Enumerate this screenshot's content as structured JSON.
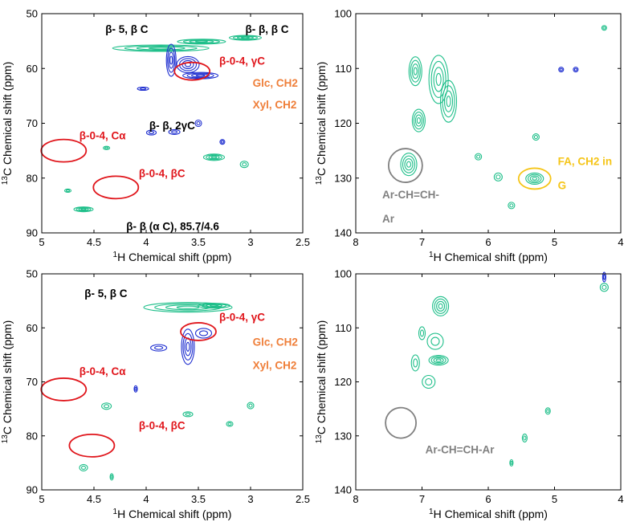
{
  "colors": {
    "contour_green": "#1fbf8a",
    "contour_blue": "#1f2fd0",
    "annotation_red": "#e0151b",
    "annotation_orange": "#ef7f3a",
    "annotation_black": "#000000",
    "annotation_gray": "#808080",
    "annotation_yellow": "#f5c518"
  },
  "chart_data": [
    {
      "type": "heatmap",
      "panel": "top-left",
      "xlabel": "1H Chemical shift (ppm)",
      "ylabel": "13C Chemical shift (ppm)",
      "xlim": [
        5,
        2.5
      ],
      "ylim": [
        50,
        90
      ],
      "x_ticks": [
        "5",
        "4.5",
        "4",
        "3.5",
        "3",
        "2.5"
      ],
      "y_ticks": [
        "50",
        "60",
        "70",
        "80",
        "90"
      ],
      "annotations": [
        {
          "text": "β- 5, β C",
          "x": 4.39,
          "y": 53.5,
          "color": "annotation_black"
        },
        {
          "text": "β- β, β C",
          "x": 3.05,
          "y": 53.5,
          "color": "annotation_black"
        },
        {
          "text": "β-0-4, γC",
          "x": 3.3,
          "y": 59.3,
          "color": "annotation_red"
        },
        {
          "text": "Glc, CH2",
          "x": 2.98,
          "y": 63.3,
          "color": "annotation_orange"
        },
        {
          "text": "Xyl, CH2",
          "x": 2.98,
          "y": 67.3,
          "color": "annotation_orange"
        },
        {
          "text": "β- β, 2γC",
          "x": 3.97,
          "y": 71.1,
          "color": "annotation_black"
        },
        {
          "text": "β-0-4, Cα",
          "x": 4.64,
          "y": 72.9,
          "color": "annotation_red"
        },
        {
          "text": "β-0-4, βC",
          "x": 4.07,
          "y": 79.8,
          "color": "annotation_red"
        },
        {
          "text": "β- β (α C), 85.7/4.6",
          "x": 4.19,
          "y": 89.5,
          "color": "annotation_black"
        }
      ],
      "circles": [
        {
          "label": "β-0-4, γC",
          "x": 3.56,
          "y": 60.5,
          "color": "annotation_red"
        },
        {
          "label": "β-0-4, Cα",
          "x": 4.79,
          "y": 75.0,
          "color": "annotation_red"
        },
        {
          "label": "β-0-4, βC",
          "x": 4.29,
          "y": 81.7,
          "color": "annotation_red"
        }
      ],
      "cross_peaks": [
        {
          "x": 3.86,
          "y": 56.3,
          "color": "contour_green"
        },
        {
          "x": 3.47,
          "y": 55.1,
          "color": "contour_green"
        },
        {
          "x": 3.05,
          "y": 54.4,
          "color": "contour_green"
        },
        {
          "x": 3.76,
          "y": 58.5,
          "color": "contour_blue"
        },
        {
          "x": 3.48,
          "y": 61.3,
          "color": "contour_blue"
        },
        {
          "x": 3.6,
          "y": 59.3,
          "color": "contour_blue"
        },
        {
          "x": 4.03,
          "y": 63.7,
          "color": "contour_blue"
        },
        {
          "x": 3.95,
          "y": 71.7,
          "color": "contour_blue"
        },
        {
          "x": 3.73,
          "y": 71.6,
          "color": "contour_blue"
        },
        {
          "x": 3.27,
          "y": 73.4,
          "color": "contour_blue"
        },
        {
          "x": 3.5,
          "y": 70.0,
          "color": "contour_blue"
        },
        {
          "x": 4.38,
          "y": 74.5,
          "color": "contour_green"
        },
        {
          "x": 3.35,
          "y": 76.2,
          "color": "contour_green"
        },
        {
          "x": 3.06,
          "y": 77.5,
          "color": "contour_green"
        },
        {
          "x": 4.75,
          "y": 82.3,
          "color": "contour_green"
        },
        {
          "x": 4.6,
          "y": 85.7,
          "color": "contour_green"
        }
      ]
    },
    {
      "type": "heatmap",
      "panel": "top-right",
      "xlabel": "1H Chemical shift (ppm)",
      "ylabel": "13C Chemical shift (ppm)",
      "xlim": [
        8,
        4
      ],
      "ylim": [
        100,
        140
      ],
      "x_ticks": [
        "8",
        "7",
        "6",
        "5",
        "4"
      ],
      "y_ticks": [
        "100",
        "110",
        "120",
        "130",
        "140"
      ],
      "annotations": [
        {
          "text": "FA, CH2 in",
          "x": 4.95,
          "y": 127.6,
          "color": "annotation_yellow"
        },
        {
          "text": "G",
          "x": 4.95,
          "y": 132.0,
          "color": "annotation_yellow"
        },
        {
          "text": "Ar-CH=CH-",
          "x": 7.6,
          "y": 133.7,
          "color": "annotation_gray"
        },
        {
          "text": "Ar",
          "x": 7.6,
          "y": 138.1,
          "color": "annotation_gray"
        }
      ],
      "circles": [
        {
          "label": "Ar-CH=CH-Ar",
          "x": 7.25,
          "y": 127.7,
          "color": "annotation_gray"
        },
        {
          "label": "FA, CH2 in G",
          "x": 5.3,
          "y": 130.1,
          "color": "annotation_yellow"
        }
      ],
      "cross_peaks": [
        {
          "x": 6.75,
          "y": 112.0,
          "color": "contour_green"
        },
        {
          "x": 7.1,
          "y": 110.5,
          "color": "contour_green"
        },
        {
          "x": 6.6,
          "y": 116.0,
          "color": "contour_green"
        },
        {
          "x": 7.05,
          "y": 119.5,
          "color": "contour_green"
        },
        {
          "x": 7.2,
          "y": 127.5,
          "color": "contour_green"
        },
        {
          "x": 5.3,
          "y": 130.1,
          "color": "contour_green"
        },
        {
          "x": 5.85,
          "y": 129.8,
          "color": "contour_green"
        },
        {
          "x": 6.15,
          "y": 126.1,
          "color": "contour_green"
        },
        {
          "x": 5.65,
          "y": 135.0,
          "color": "contour_green"
        },
        {
          "x": 4.25,
          "y": 102.6,
          "color": "contour_green"
        },
        {
          "x": 5.28,
          "y": 122.5,
          "color": "contour_green"
        },
        {
          "x": 4.9,
          "y": 110.2,
          "color": "contour_blue"
        },
        {
          "x": 4.68,
          "y": 110.2,
          "color": "contour_blue"
        }
      ]
    },
    {
      "type": "heatmap",
      "panel": "bottom-left",
      "xlabel": "1H Chemical shift (ppm)",
      "ylabel": "13C Chemical shift (ppm)",
      "xlim": [
        5,
        2.5
      ],
      "ylim": [
        50,
        90
      ],
      "x_ticks": [
        "5",
        "4.5",
        "4",
        "3.5",
        "3",
        "2.5"
      ],
      "y_ticks": [
        "50",
        "60",
        "70",
        "80",
        "90"
      ],
      "annotations": [
        {
          "text": "β- 5, β C",
          "x": 4.59,
          "y": 54.3,
          "color": "annotation_black"
        },
        {
          "text": "β-0-4, γC",
          "x": 3.3,
          "y": 58.7,
          "color": "annotation_red"
        },
        {
          "text": "Glc, CH2",
          "x": 2.98,
          "y": 63.3,
          "color": "annotation_orange"
        },
        {
          "text": "Xyl, CH2",
          "x": 2.98,
          "y": 67.6,
          "color": "annotation_orange"
        },
        {
          "text": "β-0-4, Cα",
          "x": 4.64,
          "y": 68.7,
          "color": "annotation_red"
        },
        {
          "text": "β-0-4, βC",
          "x": 4.07,
          "y": 78.8,
          "color": "annotation_red"
        }
      ],
      "circles": [
        {
          "label": "β-0-4, γC",
          "x": 3.5,
          "y": 60.7,
          "color": "annotation_red"
        },
        {
          "label": "β-0-4, Cα",
          "x": 4.79,
          "y": 71.4,
          "color": "annotation_red"
        },
        {
          "label": "β-0-4, βC",
          "x": 4.52,
          "y": 81.8,
          "color": "annotation_red"
        }
      ],
      "cross_peaks": [
        {
          "x": 3.6,
          "y": 56.2,
          "color": "contour_green"
        },
        {
          "x": 3.35,
          "y": 55.9,
          "color": "contour_green"
        },
        {
          "x": 3.6,
          "y": 63.5,
          "color": "contour_blue"
        },
        {
          "x": 3.45,
          "y": 61.0,
          "color": "contour_blue"
        },
        {
          "x": 3.88,
          "y": 63.7,
          "color": "contour_blue"
        },
        {
          "x": 4.1,
          "y": 71.3,
          "color": "contour_blue"
        },
        {
          "x": 4.38,
          "y": 74.5,
          "color": "contour_green"
        },
        {
          "x": 3.6,
          "y": 76.0,
          "color": "contour_green"
        },
        {
          "x": 3.0,
          "y": 74.4,
          "color": "contour_green"
        },
        {
          "x": 3.2,
          "y": 77.8,
          "color": "contour_green"
        },
        {
          "x": 4.6,
          "y": 85.9,
          "color": "contour_green"
        },
        {
          "x": 4.33,
          "y": 87.6,
          "color": "contour_green"
        }
      ]
    },
    {
      "type": "heatmap",
      "panel": "bottom-right",
      "xlabel": "1H Chemical shift (ppm)",
      "ylabel": "13C Chemical shift (ppm)",
      "xlim": [
        8,
        4
      ],
      "ylim": [
        100,
        140
      ],
      "x_ticks": [
        "8",
        "7",
        "6",
        "5",
        "4"
      ],
      "y_ticks": [
        "100",
        "110",
        "120",
        "130",
        "140"
      ],
      "annotations": [
        {
          "text": "Ar-CH=CH-Ar",
          "x": 6.95,
          "y": 133.2,
          "color": "annotation_gray"
        }
      ],
      "circles": [
        {
          "label": "Ar-CH=CH-Ar",
          "x": 7.32,
          "y": 127.6,
          "color": "annotation_gray"
        }
      ],
      "cross_peaks": [
        {
          "x": 6.72,
          "y": 106.0,
          "color": "contour_green"
        },
        {
          "x": 6.8,
          "y": 112.5,
          "color": "contour_green"
        },
        {
          "x": 6.75,
          "y": 116.0,
          "color": "contour_green"
        },
        {
          "x": 6.9,
          "y": 120.0,
          "color": "contour_green"
        },
        {
          "x": 7.1,
          "y": 116.5,
          "color": "contour_green"
        },
        {
          "x": 7.0,
          "y": 111.0,
          "color": "contour_green"
        },
        {
          "x": 5.1,
          "y": 125.4,
          "color": "contour_green"
        },
        {
          "x": 5.45,
          "y": 130.4,
          "color": "contour_green"
        },
        {
          "x": 5.65,
          "y": 135.0,
          "color": "contour_green"
        },
        {
          "x": 4.25,
          "y": 102.5,
          "color": "contour_green"
        },
        {
          "x": 4.25,
          "y": 100.6,
          "color": "contour_blue"
        }
      ]
    }
  ]
}
